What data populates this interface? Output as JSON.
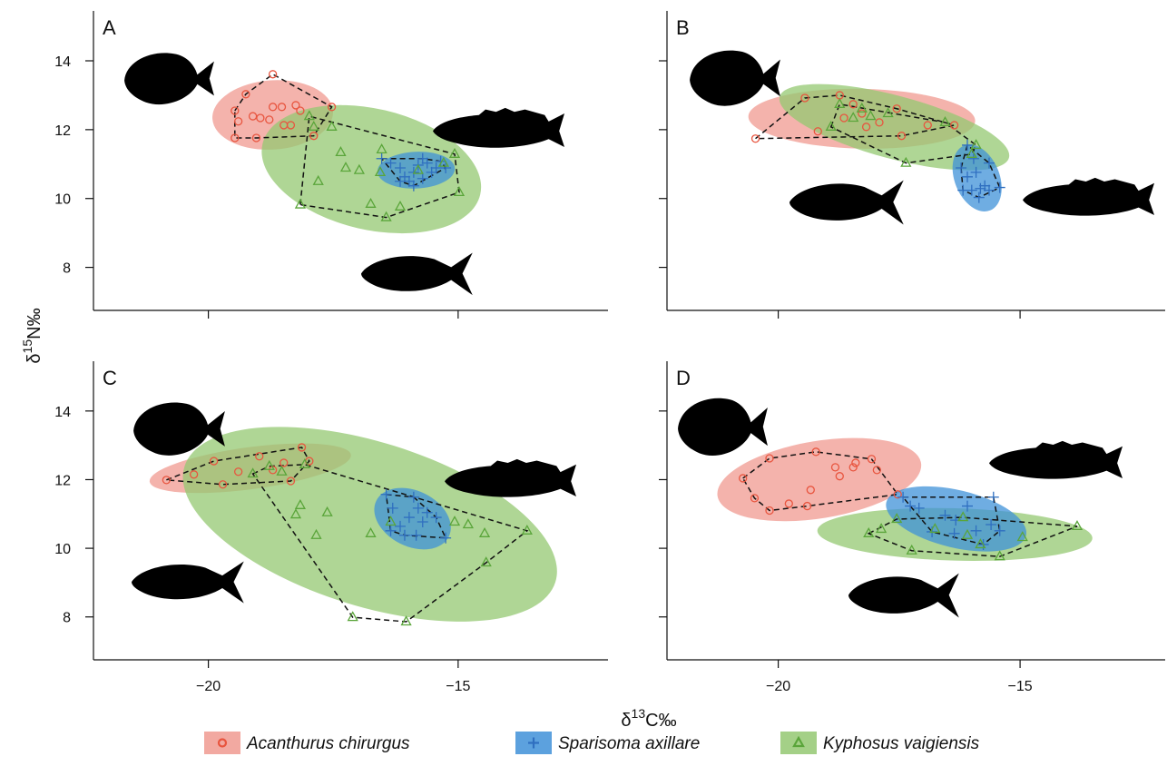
{
  "figure": {
    "x_label": [
      "δ",
      "13",
      "C‰"
    ],
    "y_label": [
      "δ",
      "15",
      "N‰"
    ]
  },
  "chart_data": [
    {
      "type": "scatter",
      "panel": "A",
      "xlim": [
        -22.3,
        -12
      ],
      "ylim": [
        6.75,
        15.45
      ],
      "xticks": [
        -20,
        -15
      ],
      "yticks": [
        8,
        10,
        12,
        14
      ],
      "series": [
        {
          "name": "Acanthurus chirurgus",
          "color": "#e8553f",
          "fill": "#f09a90",
          "marker": "circle",
          "x": [
            -18.71,
            -19.25,
            -19.47,
            -18.71,
            -18.53,
            -18.25,
            -18.16,
            -19.11,
            -18.96,
            -19.4,
            -18.78,
            -19.47,
            -19.04,
            -18.49,
            -18.35,
            -17.89,
            -17.53
          ],
          "values": [
            13.61,
            13.03,
            12.55,
            12.66,
            12.66,
            12.71,
            12.55,
            12.39,
            12.34,
            12.24,
            12.29,
            11.76,
            11.76,
            12.13,
            12.13,
            11.82,
            12.66
          ]
        },
        {
          "name": "Sparisoma axillare",
          "color": "#2f6fc0",
          "fill": "#3f91d8",
          "marker": "plus",
          "x": [
            -16.53,
            -16.35,
            -16.16,
            -16.07,
            -15.98,
            -15.89,
            -15.8,
            -15.71,
            -15.62,
            -15.53,
            -15.44,
            -15.35,
            -16.16,
            -15.89,
            -15.71,
            -15.25
          ],
          "values": [
            11.16,
            11.03,
            10.89,
            10.63,
            10.5,
            10.76,
            10.97,
            11.16,
            11.03,
            10.76,
            10.89,
            11.08,
            10.5,
            10.37,
            10.58,
            10.89
          ]
        },
        {
          "name": "Kyphosus vaigiensis",
          "color": "#5aa53a",
          "fill": "#94c872",
          "marker": "triangle",
          "x": [
            -18.16,
            -17.8,
            -17.35,
            -17.25,
            -16.98,
            -16.75,
            -16.53,
            -16.56,
            -16.44,
            -16.16,
            -15.8,
            -15.29,
            -14.98,
            -17.98,
            -17.89,
            -17.53,
            -15.07
          ],
          "values": [
            9.82,
            10.5,
            11.34,
            10.89,
            10.82,
            9.84,
            11.42,
            10.76,
            9.45,
            9.76,
            10.82,
            11.03,
            10.18,
            12.39,
            12.08,
            12.08,
            11.29
          ]
        }
      ]
    },
    {
      "type": "scatter",
      "panel": "B",
      "xlim": [
        -22.3,
        -12
      ],
      "ylim": [
        6.75,
        15.45
      ],
      "xticks": [
        -20,
        -15
      ],
      "yticks": [
        8,
        10,
        12,
        14
      ],
      "series": [
        {
          "color": "#e8553f",
          "fill": "#f09a90",
          "marker": "circle",
          "x": [
            -20.47,
            -19.45,
            -19.18,
            -18.73,
            -18.64,
            -18.45,
            -18.27,
            -18.18,
            -17.91,
            -17.55,
            -16.91,
            -17.45,
            -16.36
          ],
          "values": [
            11.74,
            12.92,
            11.95,
            13.0,
            12.34,
            12.74,
            12.47,
            12.08,
            12.21,
            12.61,
            12.13,
            11.82,
            12.13
          ]
        },
        {
          "color": "#2f6fc0",
          "fill": "#3f91d8",
          "marker": "plus",
          "x": [
            -16.22,
            -16.09,
            -16.09,
            -15.96,
            -16.18,
            -16.0,
            -15.82,
            -15.85,
            -15.73,
            -15.64,
            -15.42,
            -15.64,
            -15.91
          ],
          "values": [
            10.89,
            11.55,
            10.63,
            11.16,
            10.24,
            10.24,
            10.29,
            10.03,
            10.37,
            10.24,
            10.32,
            11.03,
            10.76
          ]
        },
        {
          "color": "#5aa53a",
          "fill": "#94c872",
          "marker": "triangle",
          "x": [
            -18.73,
            -18.27,
            -18.09,
            -17.73,
            -17.36,
            -16.55,
            -18.91,
            -18.45,
            -15.91,
            -16.0
          ],
          "values": [
            12.74,
            12.61,
            12.39,
            12.47,
            11.03,
            12.21,
            12.08,
            12.34,
            11.55,
            11.29
          ]
        }
      ]
    },
    {
      "type": "scatter",
      "panel": "C",
      "xlim": [
        -22.3,
        -12
      ],
      "ylim": [
        6.75,
        15.45
      ],
      "xticks": [
        {
          "value": -20,
          "label": "−20"
        },
        {
          "value": -15,
          "label": "−15"
        }
      ],
      "yticks": [
        8,
        10,
        12,
        14
      ],
      "series": [
        {
          "color": "#e8553f",
          "fill": "#f09a90",
          "marker": "circle",
          "x": [
            -20.84,
            -20.29,
            -19.89,
            -19.71,
            -19.4,
            -18.98,
            -18.71,
            -18.49,
            -18.35,
            -18.13,
            -17.98
          ],
          "values": [
            11.99,
            12.15,
            12.54,
            11.86,
            12.23,
            12.68,
            12.28,
            12.49,
            11.96,
            12.94,
            12.54
          ]
        },
        {
          "color": "#2f6fc0",
          "fill": "#3f91d8",
          "marker": "plus",
          "x": [
            -16.44,
            -16.31,
            -16.16,
            -16.07,
            -15.98,
            -15.89,
            -15.8,
            -15.71,
            -15.62,
            -16.35,
            -15.25,
            -15.44,
            -15.84
          ],
          "values": [
            11.57,
            11.17,
            10.64,
            10.38,
            10.9,
            11.49,
            11.17,
            10.77,
            11.04,
            10.51,
            10.3,
            10.9,
            10.38
          ]
        },
        {
          "color": "#5aa53a",
          "fill": "#94c872",
          "marker": "triangle",
          "x": [
            -19.11,
            -18.78,
            -18.53,
            -18.07,
            -18.25,
            -18.16,
            -17.84,
            -17.62,
            -17.11,
            -16.75,
            -16.35,
            -16.04,
            -15.07,
            -14.8,
            -14.47,
            -14.44,
            -13.62
          ],
          "values": [
            12.17,
            12.39,
            12.23,
            12.44,
            10.98,
            11.25,
            10.38,
            11.04,
            7.99,
            10.43,
            10.77,
            7.86,
            10.77,
            10.69,
            10.43,
            9.58,
            10.51
          ]
        }
      ]
    },
    {
      "type": "scatter",
      "panel": "D",
      "xlim": [
        -22.3,
        -12
      ],
      "ylim": [
        6.75,
        15.45
      ],
      "xticks": [
        {
          "value": -20,
          "label": "−20"
        },
        {
          "value": -15,
          "label": "−15"
        }
      ],
      "yticks": [
        8,
        10,
        12,
        14
      ],
      "series": [
        {
          "color": "#e8553f",
          "fill": "#f09a90",
          "marker": "circle",
          "x": [
            -20.73,
            -20.49,
            -20.18,
            -19.78,
            -19.33,
            -19.22,
            -18.82,
            -18.73,
            -18.45,
            -18.4,
            -18.07,
            -17.96,
            -17.53,
            -19.4,
            -20.18
          ],
          "values": [
            12.04,
            11.46,
            12.62,
            11.3,
            11.7,
            12.81,
            12.36,
            12.1,
            12.36,
            12.49,
            12.6,
            12.28,
            11.57,
            11.23,
            11.1
          ]
        },
        {
          "color": "#2f6fc0",
          "fill": "#3f91d8",
          "marker": "plus",
          "x": [
            -17.42,
            -17.27,
            -17.09,
            -16.82,
            -16.55,
            -16.33,
            -16.09,
            -15.91,
            -15.76,
            -15.6,
            -15.55,
            -15.42,
            -16.36
          ],
          "values": [
            11.49,
            11.23,
            11.17,
            10.48,
            10.96,
            10.82,
            11.23,
            10.51,
            10.11,
            10.69,
            11.49,
            10.51,
            10.43
          ]
        },
        {
          "color": "#5aa53a",
          "fill": "#94c872",
          "marker": "triangle",
          "x": [
            -18.13,
            -17.87,
            -17.55,
            -17.24,
            -16.76,
            -16.18,
            -15.82,
            -15.42,
            -14.95,
            -13.82,
            -16.09
          ],
          "values": [
            10.43,
            10.56,
            10.85,
            9.93,
            10.56,
            10.9,
            10.11,
            9.76,
            10.32,
            10.64,
            10.38
          ]
        }
      ]
    }
  ]
}
